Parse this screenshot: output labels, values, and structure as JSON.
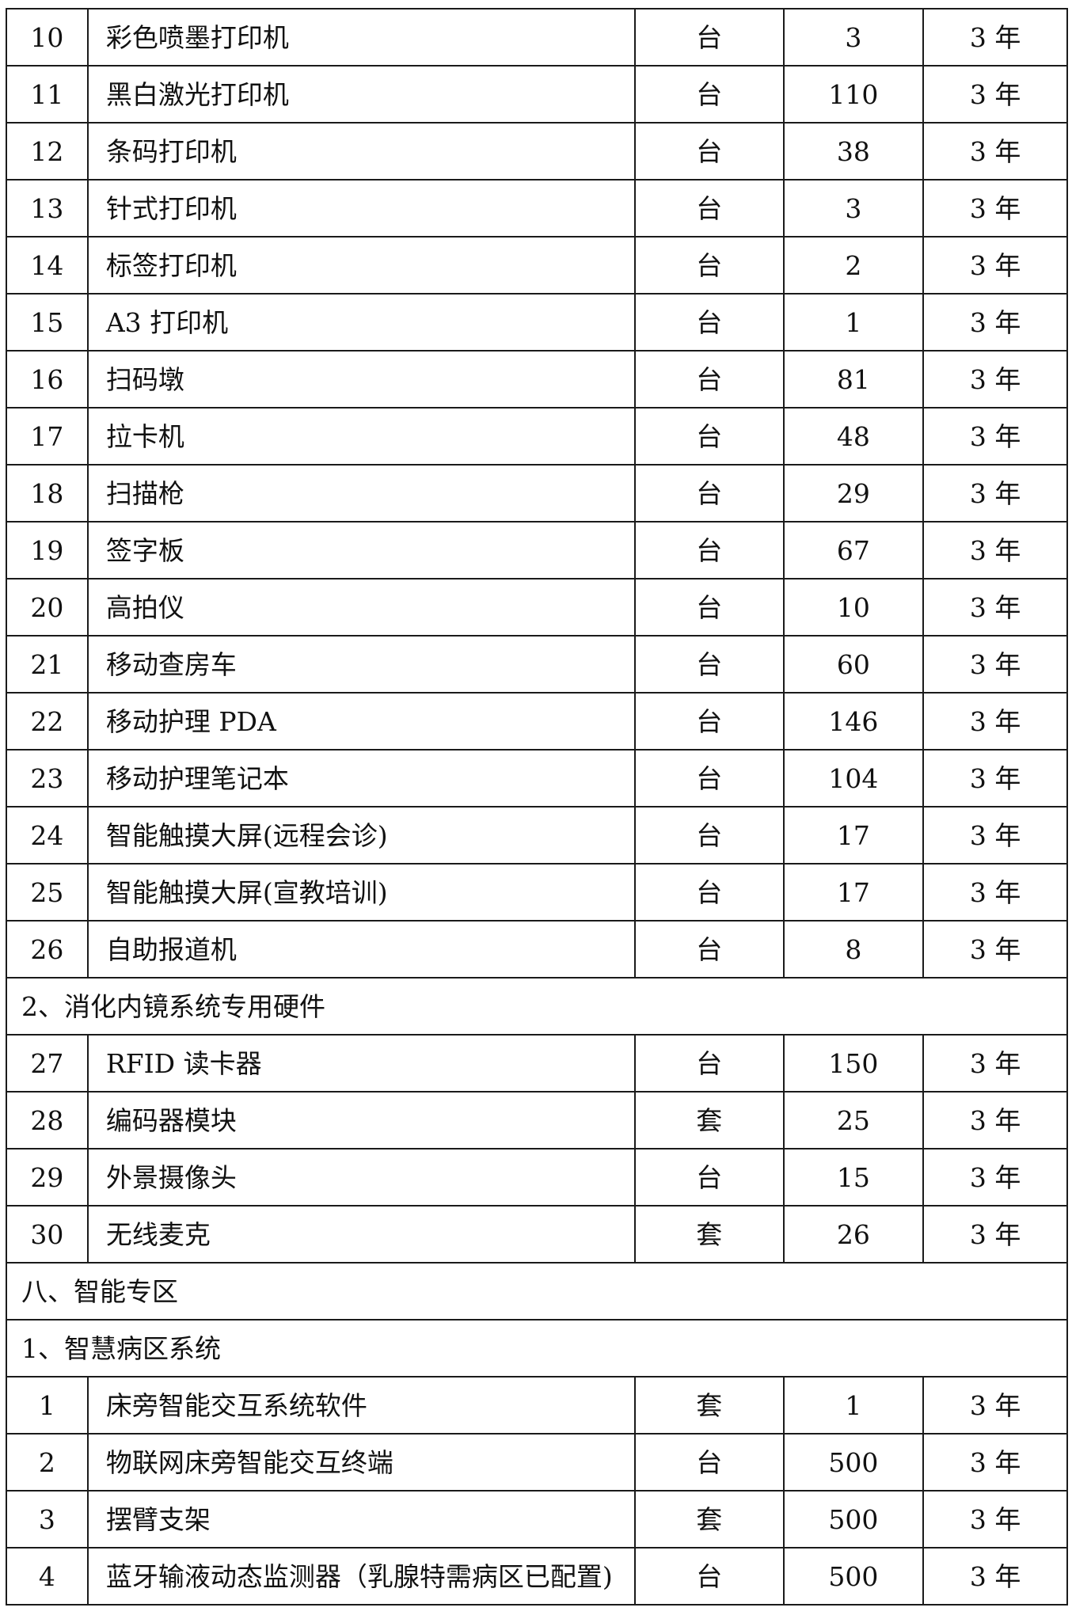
{
  "table": {
    "warranty_label_common": "3 年",
    "rows": [
      {
        "type": "item",
        "no": "10",
        "name": "彩色喷墨打印机",
        "unit": "台",
        "qty": "3",
        "warranty": "3 年"
      },
      {
        "type": "item",
        "no": "11",
        "name": "黑白激光打印机",
        "unit": "台",
        "qty": "110",
        "warranty": "3 年"
      },
      {
        "type": "item",
        "no": "12",
        "name": "条码打印机",
        "unit": "台",
        "qty": "38",
        "warranty": "3 年"
      },
      {
        "type": "item",
        "no": "13",
        "name": "针式打印机",
        "unit": "台",
        "qty": "3",
        "warranty": "3 年"
      },
      {
        "type": "item",
        "no": "14",
        "name": "标签打印机",
        "unit": "台",
        "qty": "2",
        "warranty": "3 年"
      },
      {
        "type": "item",
        "no": "15",
        "name": "A3 打印机",
        "unit": "台",
        "qty": "1",
        "warranty": "3 年"
      },
      {
        "type": "item",
        "no": "16",
        "name": "扫码墩",
        "unit": "台",
        "qty": "81",
        "warranty": "3 年"
      },
      {
        "type": "item",
        "no": "17",
        "name": "拉卡机",
        "unit": "台",
        "qty": "48",
        "warranty": "3 年"
      },
      {
        "type": "item",
        "no": "18",
        "name": "扫描枪",
        "unit": "台",
        "qty": "29",
        "warranty": "3 年"
      },
      {
        "type": "item",
        "no": "19",
        "name": "签字板",
        "unit": "台",
        "qty": "67",
        "warranty": "3 年"
      },
      {
        "type": "item",
        "no": "20",
        "name": "高拍仪",
        "unit": "台",
        "qty": "10",
        "warranty": "3 年"
      },
      {
        "type": "item",
        "no": "21",
        "name": "移动查房车",
        "unit": "台",
        "qty": "60",
        "warranty": "3 年"
      },
      {
        "type": "item",
        "no": "22",
        "name": "移动护理 PDA",
        "unit": "台",
        "qty": "146",
        "warranty": "3 年"
      },
      {
        "type": "item",
        "no": "23",
        "name": "移动护理笔记本",
        "unit": "台",
        "qty": "104",
        "warranty": "3 年"
      },
      {
        "type": "item",
        "no": "24",
        "name": "智能触摸大屏(远程会诊)",
        "unit": "台",
        "qty": "17",
        "warranty": "3 年"
      },
      {
        "type": "item",
        "no": "25",
        "name": "智能触摸大屏(宣教培训)",
        "unit": "台",
        "qty": "17",
        "warranty": "3 年"
      },
      {
        "type": "item",
        "no": "26",
        "name": "自助报道机",
        "unit": "台",
        "qty": "8",
        "warranty": "3 年"
      },
      {
        "type": "section",
        "label": "2、消化内镜系统专用硬件"
      },
      {
        "type": "item",
        "no": "27",
        "name": "RFID 读卡器",
        "unit": "台",
        "qty": "150",
        "warranty": "3 年"
      },
      {
        "type": "item",
        "no": "28",
        "name": "编码器模块",
        "unit": "套",
        "qty": "25",
        "warranty": "3 年"
      },
      {
        "type": "item",
        "no": "29",
        "name": "外景摄像头",
        "unit": "台",
        "qty": "15",
        "warranty": "3 年"
      },
      {
        "type": "item",
        "no": "30",
        "name": "无线麦克",
        "unit": "套",
        "qty": "26",
        "warranty": "3 年"
      },
      {
        "type": "section",
        "label": "八、智能专区"
      },
      {
        "type": "section",
        "label": "1、智慧病区系统"
      },
      {
        "type": "item",
        "no": "1",
        "name": "床旁智能交互系统软件",
        "unit": "套",
        "qty": "1",
        "warranty": "3 年"
      },
      {
        "type": "item",
        "no": "2",
        "name": "物联网床旁智能交互终端",
        "unit": "台",
        "qty": "500",
        "warranty": "3 年"
      },
      {
        "type": "item",
        "no": "3",
        "name": "摆臂支架",
        "unit": "套",
        "qty": "500",
        "warranty": "3 年"
      },
      {
        "type": "item",
        "no": "4",
        "name": "蓝牙输液动态监测器（乳腺特需病区已配置)",
        "unit": "台",
        "qty": "500",
        "warranty": "3 年"
      }
    ]
  }
}
